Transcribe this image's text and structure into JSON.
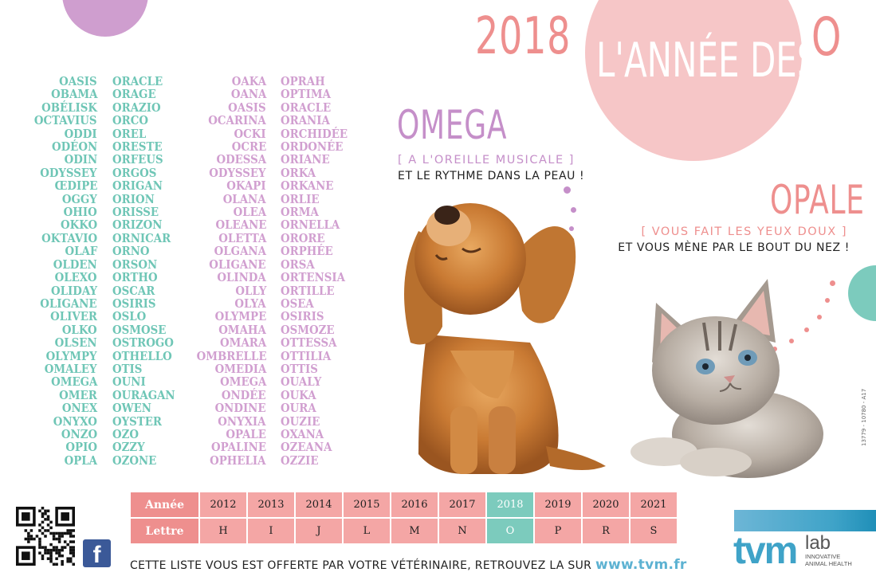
{
  "title": {
    "year": "2018",
    "middle": "L'ANNÉE DES",
    "letter": "O"
  },
  "names": {
    "col1": [
      "OASIS",
      "OBAMA",
      "OBÉLISK",
      "OCTAVIUS",
      "ODDI",
      "ODÉON",
      "ODIN",
      "ODYSSEY",
      "ŒDIPE",
      "OGGY",
      "OHIO",
      "OKKO",
      "OKTAVIO",
      "OLAF",
      "OLDEN",
      "OLEXO",
      "OLIDAY",
      "OLIGANE",
      "OLIVER",
      "OLKO",
      "OLSEN",
      "OLYMPY",
      "OMALEY",
      "OMEGA",
      "OMER",
      "ONEX",
      "ONYXO",
      "ONZO",
      "OPIO",
      "OPLA"
    ],
    "col2": [
      "ORACLE",
      "ORAGE",
      "ORAZIO",
      "ORCO",
      "OREL",
      "ORESTE",
      "ORFEUS",
      "ORGOS",
      "ORIGAN",
      "ORION",
      "ORISSE",
      "ORIZON",
      "ORNICAR",
      "ORNO",
      "ORSON",
      "ORTHO",
      "OSCAR",
      "OSIRIS",
      "OSLO",
      "OSMOSE",
      "OSTROGO",
      "OTHELLO",
      "OTIS",
      "OUNI",
      "OURAGAN",
      "OWEN",
      "OYSTER",
      "OZO",
      "OZZY",
      "OZONE"
    ],
    "col3": [
      "OAKA",
      "OANA",
      "OASIS",
      "OCARINA",
      "OCKI",
      "OCRE",
      "ODESSA",
      "ODYSSEY",
      "OKAPI",
      "OLANA",
      "OLEA",
      "OLEANE",
      "OLETTA",
      "OLGANA",
      "OLIGANE",
      "OLINDA",
      "OLLY",
      "OLYA",
      "OLYMPE",
      "OMAHA",
      "OMARA",
      "OMBRELLE",
      "OMEDIA",
      "OMEGA",
      "ONDÉE",
      "ONDINE",
      "ONYXIA",
      "OPALE",
      "OPALINE",
      "OPHELIA"
    ],
    "col4": [
      "OPRAH",
      "OPTIMA",
      "ORACLE",
      "ORANIA",
      "ORCHIDÉE",
      "ORDONÉE",
      "ORIANE",
      "ORKA",
      "ORKANE",
      "ORLIE",
      "ORMA",
      "ORNELLA",
      "ORORE",
      "ORPHÉE",
      "ORSA",
      "ORTENSIA",
      "ORTILLE",
      "OSEA",
      "OSIRIS",
      "OSMOZE",
      "OTTESSA",
      "OTTILIA",
      "OTTIS",
      "OUALY",
      "OUKA",
      "OURA",
      "OUZIE",
      "OXANA",
      "OZEANA",
      "OZZIE"
    ]
  },
  "omega": {
    "title": "OMEGA",
    "subtitle": "[ A L'OREILLE MUSICALE ]",
    "desc": "ET LE RYTHME DANS LA PEAU !"
  },
  "opale": {
    "title": "OPALE",
    "subtitle": "[ VOUS FAIT LES YEUX DOUX ]",
    "desc": "ET VOUS MÈNE PAR LE BOUT DU NEZ !"
  },
  "table": {
    "row1_label": "Année",
    "row2_label": "Lettre",
    "years": [
      "2012",
      "2013",
      "2014",
      "2015",
      "2016",
      "2017",
      "2018",
      "2019",
      "2020",
      "2021"
    ],
    "letters": [
      "H",
      "I",
      "J",
      "L",
      "M",
      "N",
      "O",
      "P",
      "R",
      "S"
    ],
    "current_index": 6
  },
  "footer": {
    "text": "CETTE LISTE VOUS EST OFFERTE PAR VOTRE VÉTÉRINAIRE, RETROUVEZ LA SUR",
    "url": "www.tvm.fr"
  },
  "facebook": {
    "label": "f"
  },
  "logo": {
    "main": "tvm",
    "lab": "lab",
    "line1": "INNOVATIVE",
    "line2": "ANIMAL HEALTH"
  },
  "side_code": "13779 - 10780 - A17",
  "colors": {
    "teal": "#6fc6b6",
    "lilac": "#d19fd0",
    "pink": "#ee8f8e",
    "light_pink": "#f6c6c7",
    "blue": "#3fa3c8"
  }
}
